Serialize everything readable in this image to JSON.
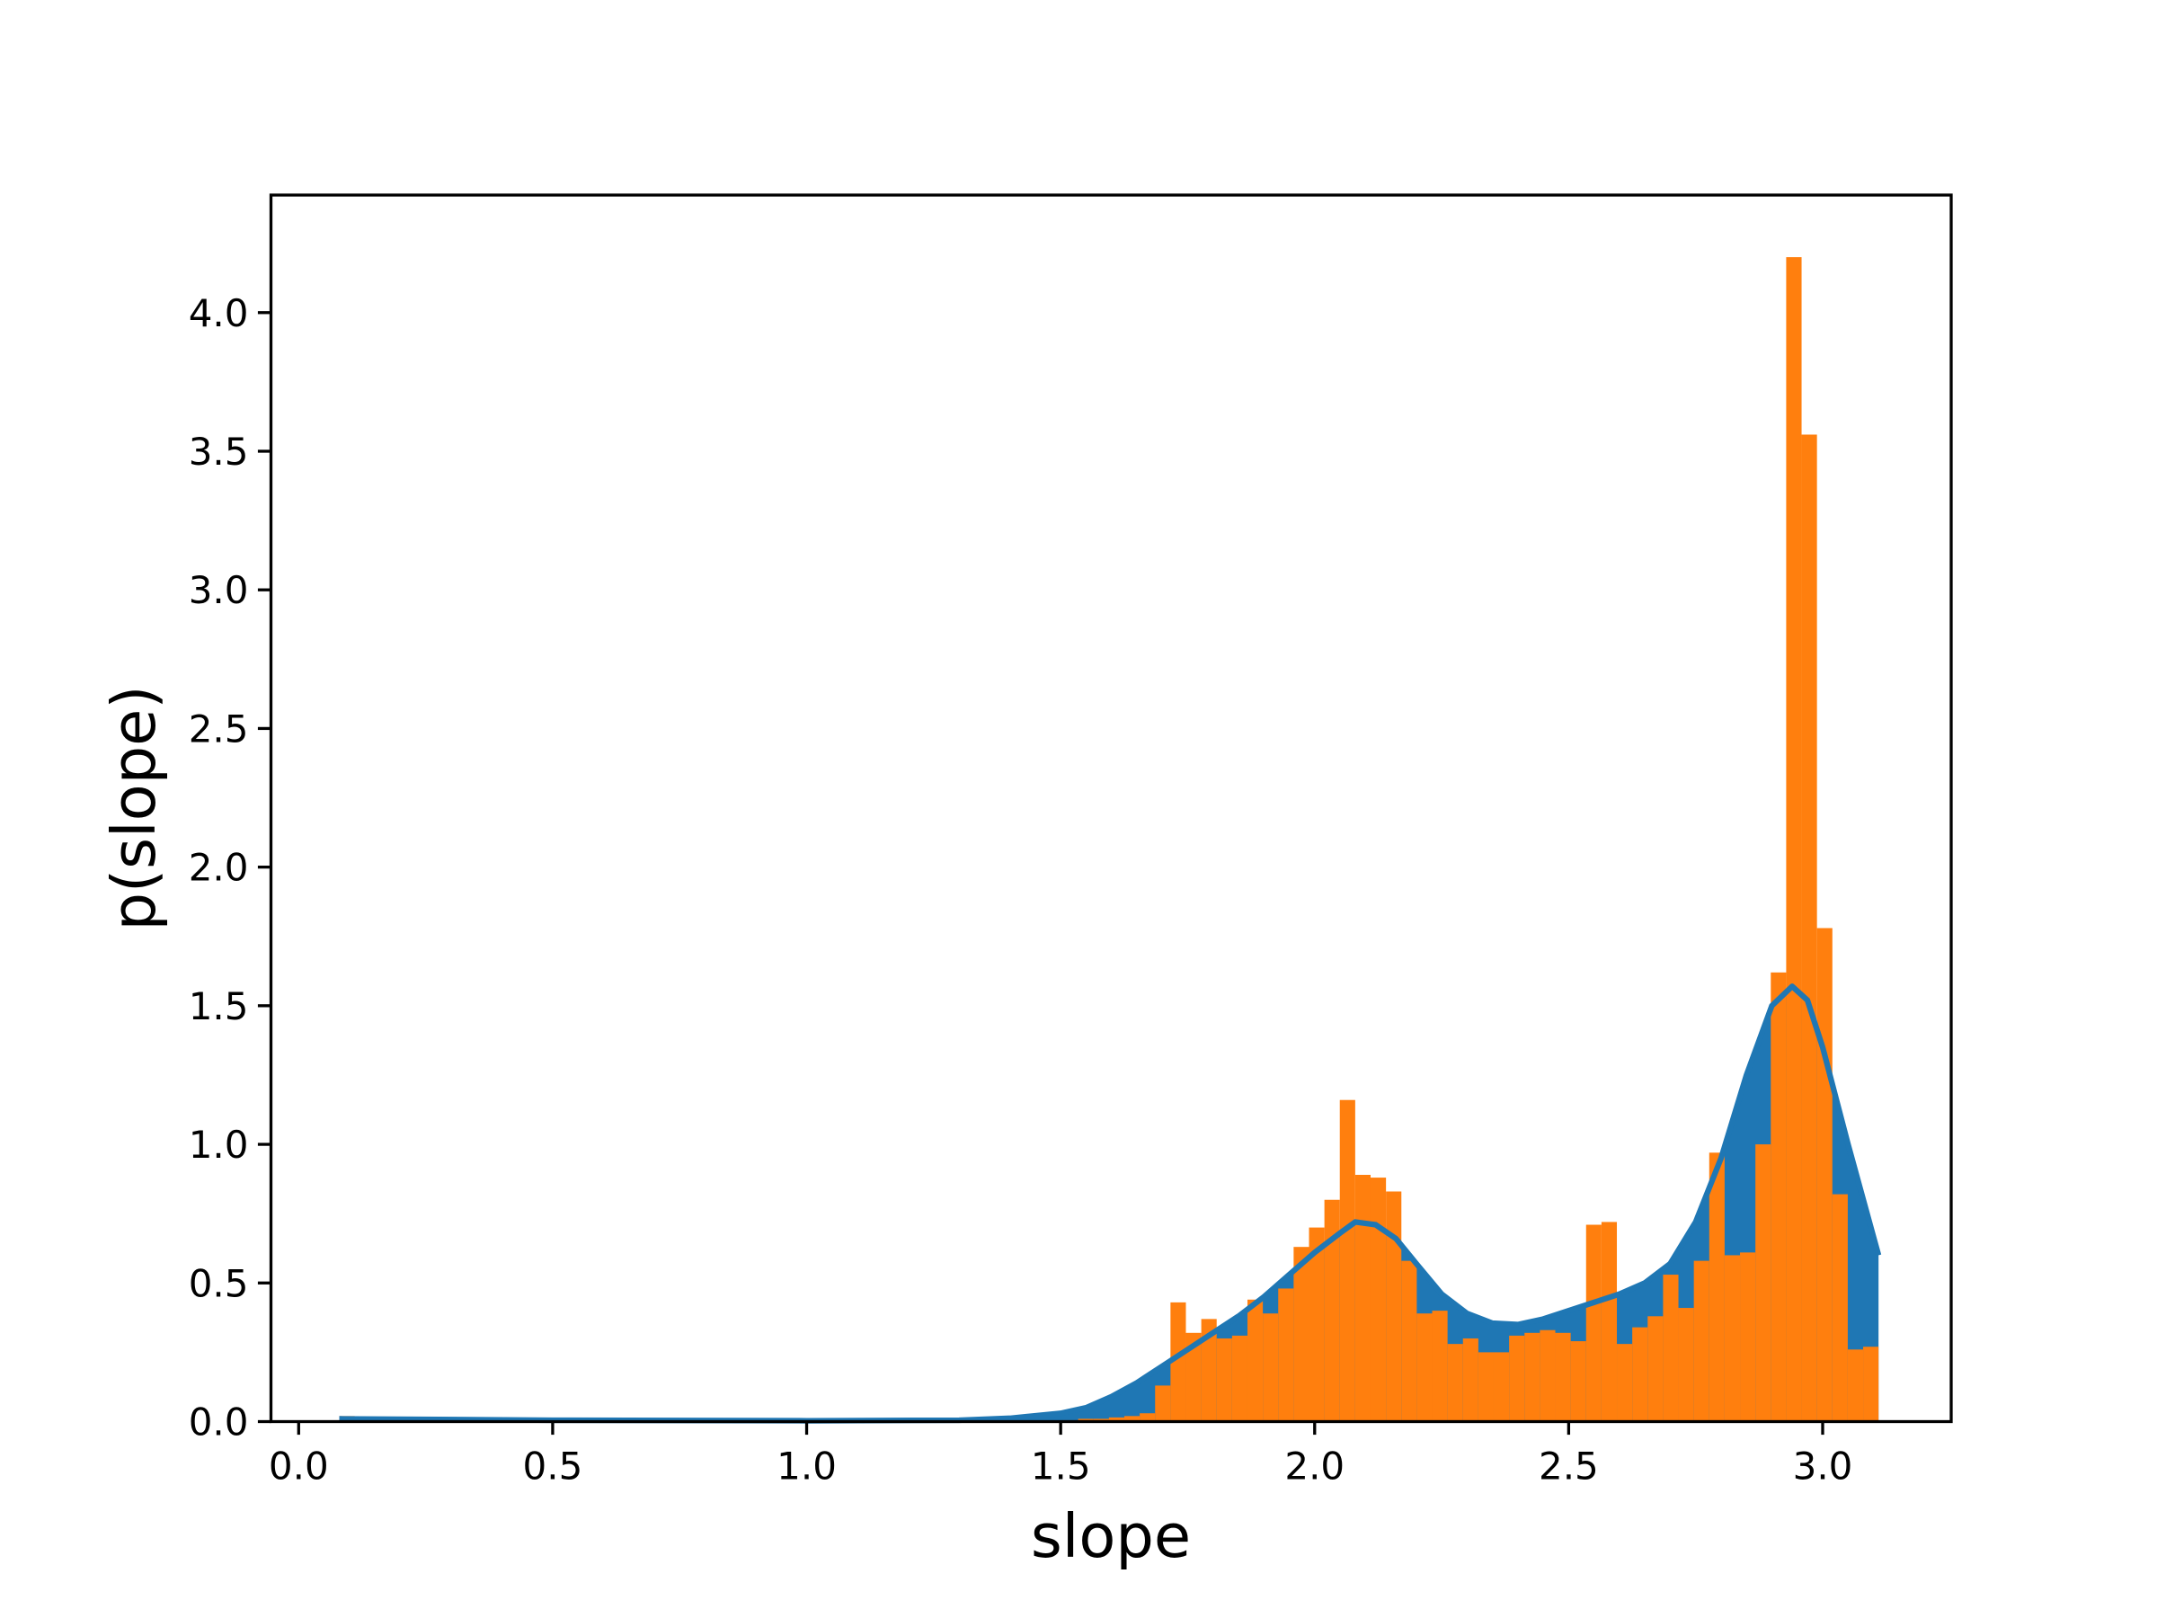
{
  "chart_data": {
    "type": "histogram",
    "xlabel": "slope",
    "ylabel": "p(slope)",
    "color": "#ff7f0e",
    "bins": [
      0.08,
      0.1103,
      0.1406,
      0.1709,
      0.2012,
      0.2315,
      0.2618,
      0.2921,
      0.3224,
      0.3527,
      0.383,
      0.4133,
      0.4436,
      0.4739,
      0.5042,
      0.5345,
      0.5648,
      0.5951,
      0.6254,
      0.6557,
      0.686,
      0.7163,
      0.7466,
      0.7769,
      0.8072,
      0.8375,
      0.8678,
      0.8981,
      0.9284,
      0.9587,
      0.989,
      1.0193,
      1.0496,
      1.0799,
      1.1102,
      1.1405,
      1.1708,
      1.2011,
      1.2314,
      1.2617,
      1.292,
      1.3223,
      1.3526,
      1.3829,
      1.4132,
      1.4435,
      1.4738,
      1.5041,
      1.5344,
      1.5647,
      1.595,
      1.6253,
      1.6556,
      1.6859,
      1.7162,
      1.7465,
      1.7768,
      1.8071,
      1.8374,
      1.8677,
      1.898,
      1.9283,
      1.9586,
      1.9889,
      2.0192,
      2.0495,
      2.0798,
      2.1101,
      2.1404,
      2.1707,
      2.201,
      2.2313,
      2.2616,
      2.2919,
      2.3222,
      2.3525,
      2.3828,
      2.4131,
      2.4434,
      2.4737,
      2.504,
      2.5343,
      2.5646,
      2.5949,
      2.6252,
      2.6555,
      2.6858,
      2.7161,
      2.7464,
      2.7767,
      2.807,
      2.8373,
      2.8676,
      2.8979,
      2.9282,
      2.9585,
      2.9888,
      3.0191,
      3.0494,
      3.0797,
      3.11
    ],
    "counts": [
      0.02,
      0,
      0,
      0,
      0,
      0,
      0,
      0,
      0,
      0,
      0,
      0,
      0,
      0,
      0,
      0,
      0,
      0,
      0,
      0,
      0,
      0,
      0,
      0,
      0,
      0,
      0,
      0,
      0,
      0,
      0,
      0,
      0,
      0,
      0,
      0,
      0,
      0,
      0,
      0,
      0,
      0,
      0,
      0,
      0,
      0,
      0,
      0.005,
      0.01,
      0.01,
      0.015,
      0.02,
      0.03,
      0.13,
      0.43,
      0.32,
      0.37,
      0.3,
      0.31,
      0.44,
      0.39,
      0.48,
      0.63,
      0.7,
      0.8,
      1.16,
      0.89,
      0.88,
      0.83,
      0.58,
      0.39,
      0.4,
      0.28,
      0.3,
      0.25,
      0.25,
      0.31,
      0.32,
      0.33,
      0.32,
      0.29,
      0.71,
      0.72,
      0.28,
      0.34,
      0.38,
      0.53,
      0.41,
      0.58,
      0.97,
      0.6,
      0.61,
      1.0,
      1.62,
      4.2,
      3.56,
      1.78,
      0.82,
      0.26,
      0.27
    ],
    "kde": {
      "color": "#1f77b4",
      "x": [
        0.08,
        0.5,
        1.0,
        1.3,
        1.4,
        1.5,
        1.55,
        1.6,
        1.65,
        1.7,
        1.75,
        1.8,
        1.85,
        1.9,
        1.95,
        2.0,
        2.05,
        2.08,
        2.12,
        2.16,
        2.2,
        2.25,
        2.3,
        2.35,
        2.4,
        2.45,
        2.5,
        2.55,
        2.6,
        2.65,
        2.7,
        2.75,
        2.8,
        2.85,
        2.9,
        2.94,
        2.97,
        3.0,
        3.05,
        3.11
      ],
      "values": [
        0.01,
        0.005,
        0.003,
        0.005,
        0.012,
        0.03,
        0.05,
        0.09,
        0.14,
        0.2,
        0.26,
        0.32,
        0.38,
        0.45,
        0.53,
        0.61,
        0.68,
        0.72,
        0.71,
        0.66,
        0.57,
        0.46,
        0.39,
        0.355,
        0.35,
        0.37,
        0.4,
        0.43,
        0.46,
        0.5,
        0.57,
        0.72,
        0.95,
        1.25,
        1.5,
        1.57,
        1.52,
        1.35,
        1.0,
        0.6
      ]
    },
    "xlim": [
      -0.0545,
      3.253
    ],
    "ylim": [
      0,
      4.424
    ],
    "xticks": [
      {
        "value": 0,
        "label": "0.0"
      },
      0.5,
      {
        "value": 1,
        "label": "1.0"
      },
      1.5,
      {
        "value": 2,
        "label": "2.0"
      },
      2.5,
      {
        "value": 3,
        "label": "3.0"
      }
    ],
    "yticks": [
      {
        "value": 0,
        "label": "0.0"
      },
      0.5,
      {
        "value": 1,
        "label": "1.0"
      },
      1.5,
      {
        "value": 2,
        "label": "2.0"
      },
      2.5,
      {
        "value": 3,
        "label": "3.0"
      },
      3.5,
      {
        "value": 4,
        "label": "4.0"
      }
    ]
  }
}
